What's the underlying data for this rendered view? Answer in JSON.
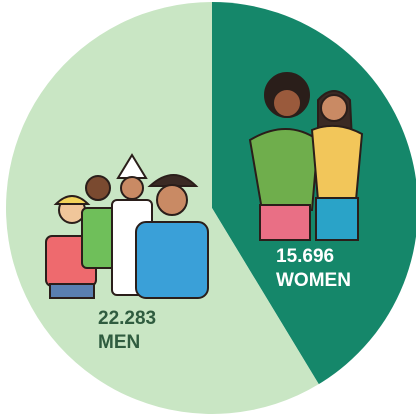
{
  "chart_data": {
    "type": "pie",
    "categories": [
      "WOMEN",
      "MEN"
    ],
    "values": [
      15696,
      22283
    ],
    "value_labels": [
      "15.696",
      "22.283"
    ],
    "colors": [
      "#15876a",
      "#c9e6c4"
    ],
    "label_colors": [
      "#ffffff",
      "#2f5c3f"
    ]
  }
}
